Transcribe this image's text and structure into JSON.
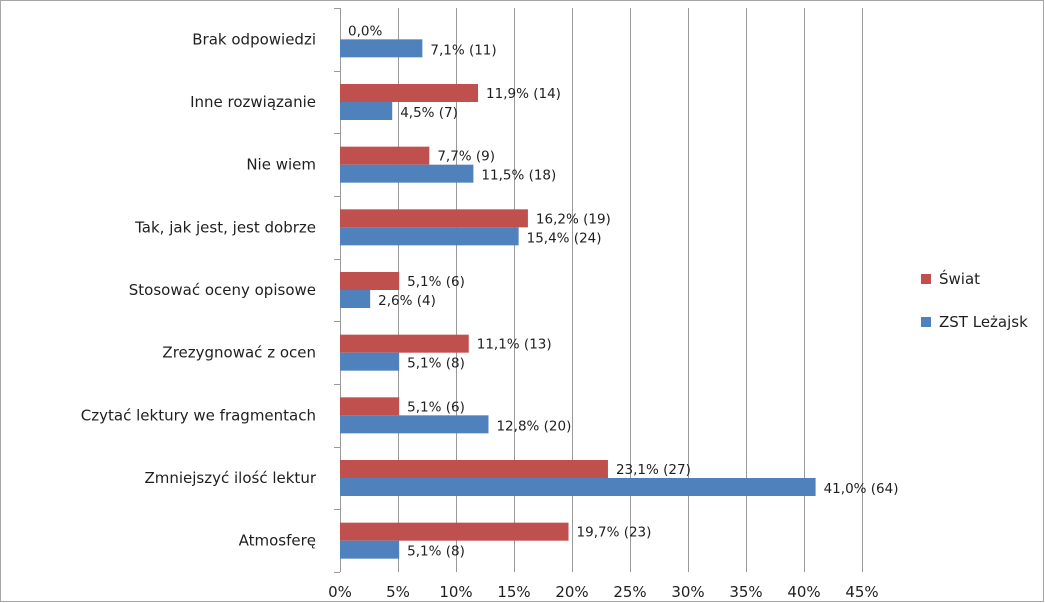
{
  "chart_data": {
    "type": "bar",
    "orientation": "horizontal",
    "categories": [
      "Brak odpowiedzi",
      "Inne rozwiązanie",
      "Nie wiem",
      "Tak, jak jest,  jest dobrze",
      "Stosować oceny opisowe",
      "Zrezygnować z ocen",
      "Czytać lektury we fragmentach",
      "Zmniejszyć ilość lektur",
      "Atmosferę"
    ],
    "series": [
      {
        "name": "Świat",
        "color": "#c0504d",
        "values": [
          0.0,
          11.9,
          7.7,
          16.2,
          5.1,
          11.1,
          5.1,
          23.1,
          19.7
        ],
        "labels": [
          "0,0%",
          "11,9% (14)",
          "7,7% (9)",
          "16,2% (19)",
          "5,1% (6)",
          "11,1% (13)",
          "5,1% (6)",
          "23,1% (27)",
          "19,7% (23)"
        ]
      },
      {
        "name": "ZST Leżajsk",
        "color": "#4f81bd",
        "values": [
          7.1,
          4.5,
          11.5,
          15.4,
          2.6,
          5.1,
          12.8,
          41.0,
          5.1
        ],
        "labels": [
          "7,1% (11)",
          "4,5% (7)",
          "11,5% (18)",
          "15,4% (24)",
          "2,6% (4)",
          "5,1% (8)",
          "12,8% (20)",
          "41,0% (64)",
          "5,1% (8)"
        ]
      }
    ],
    "xlim": [
      0,
      45
    ],
    "xticks": [
      0,
      5,
      10,
      15,
      20,
      25,
      30,
      35,
      40,
      45
    ],
    "xtick_labels": [
      "0%",
      "5%",
      "10%",
      "15%",
      "20%",
      "25%",
      "30%",
      "35%",
      "40%",
      "45%"
    ],
    "grid": true,
    "legend_position": "right"
  }
}
